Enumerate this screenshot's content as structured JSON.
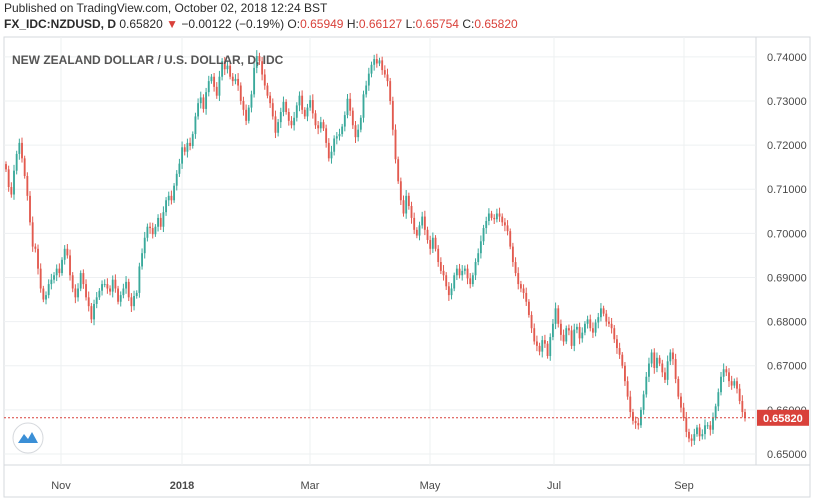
{
  "header": {
    "published": "Published on TradingView.com, October 02, 2018 12:24 BST",
    "symbol": "FX_IDC:NZDUSD, D",
    "last": "0.65820",
    "arrow": "▼",
    "change": "−0.00122 (−0.19%)",
    "o_label": "O:",
    "o_value": "0.65949",
    "h_label": "H:",
    "h_value": "0.66127",
    "l_label": "L:",
    "l_value": "0.65754",
    "c_label": "C:",
    "c_value": "0.65820"
  },
  "colors": {
    "up": "#3aa99b",
    "down": "#e25a4f",
    "price_line": "#d9413a",
    "grid": "#eef0f2",
    "axis_text": "#4a4a4a"
  },
  "icons": {
    "logo": "tradingview-cloud-icon"
  },
  "chart_data": {
    "type": "candlestick",
    "title": "NEW ZEALAND DOLLAR / U.S. DOLLAR, D, IDC",
    "ylim": [
      0.6475,
      0.7445
    ],
    "y_ticks": [
      "0.74000",
      "0.73000",
      "0.72000",
      "0.71000",
      "0.70000",
      "0.69000",
      "0.68000",
      "0.67000",
      "0.66000",
      "0.65000"
    ],
    "x_ticks": [
      "Nov",
      "2018",
      "Mar",
      "May",
      "Jul",
      "Sep"
    ],
    "last_price_label": "0.65820",
    "last_price": 0.6582,
    "closes": [
      0.7145,
      0.7105,
      0.7088,
      0.7142,
      0.718,
      0.7205,
      0.717,
      0.713,
      0.7085,
      0.7025,
      0.697,
      0.6965,
      0.692,
      0.6875,
      0.685,
      0.686,
      0.6885,
      0.6895,
      0.6905,
      0.692,
      0.691,
      0.694,
      0.6965,
      0.695,
      0.6905,
      0.6875,
      0.6855,
      0.6875,
      0.691,
      0.6885,
      0.6855,
      0.6835,
      0.6805,
      0.684,
      0.6855,
      0.687,
      0.6885,
      0.6885,
      0.6875,
      0.6868,
      0.6895,
      0.6875,
      0.6845,
      0.686,
      0.6875,
      0.689,
      0.6855,
      0.6835,
      0.6858,
      0.6865,
      0.6925,
      0.6955,
      0.699,
      0.7015,
      0.7012,
      0.6998,
      0.7015,
      0.7035,
      0.7015,
      0.7048,
      0.7075,
      0.7085,
      0.7075,
      0.7108,
      0.7135,
      0.7158,
      0.7195,
      0.7185,
      0.7205,
      0.7198,
      0.7225,
      0.7265,
      0.7295,
      0.7308,
      0.7282,
      0.732,
      0.7345,
      0.7355,
      0.7332,
      0.7312,
      0.7355,
      0.739,
      0.7372,
      0.738,
      0.7355,
      0.7345,
      0.735,
      0.7335,
      0.73,
      0.728,
      0.7255,
      0.7285,
      0.7315,
      0.7375,
      0.7402,
      0.739,
      0.736,
      0.7335,
      0.7312,
      0.7295,
      0.7265,
      0.7228,
      0.7252,
      0.7275,
      0.7298,
      0.7275,
      0.7255,
      0.7245,
      0.7262,
      0.729,
      0.7312,
      0.728,
      0.7265,
      0.7285,
      0.7302,
      0.7272,
      0.7245,
      0.7238,
      0.7252,
      0.7238,
      0.7205,
      0.717,
      0.7185,
      0.7215,
      0.722,
      0.7225,
      0.7242,
      0.7268,
      0.7305,
      0.7278,
      0.7245,
      0.7218,
      0.7235,
      0.7262,
      0.7315,
      0.7335,
      0.7362,
      0.7382,
      0.7395,
      0.7385,
      0.7392,
      0.737,
      0.736,
      0.7345,
      0.73,
      0.7235,
      0.7168,
      0.7118,
      0.7075,
      0.7045,
      0.7085,
      0.7062,
      0.7035,
      0.7008,
      0.6995,
      0.7018,
      0.7038,
      0.7008,
      0.6985,
      0.6965,
      0.699,
      0.6965,
      0.6935,
      0.6915,
      0.6905,
      0.688,
      0.686,
      0.6875,
      0.6905,
      0.692,
      0.6905,
      0.6915,
      0.692,
      0.6898,
      0.6885,
      0.6905,
      0.6935,
      0.6955,
      0.6982,
      0.7012,
      0.7028,
      0.7045,
      0.7035,
      0.7032,
      0.7045,
      0.7038,
      0.7025,
      0.7018,
      0.7005,
      0.697,
      0.6935,
      0.691,
      0.6885,
      0.6875,
      0.6865,
      0.6845,
      0.6815,
      0.6785,
      0.6755,
      0.6745,
      0.6732,
      0.6758,
      0.675,
      0.6722,
      0.6765,
      0.6795,
      0.683,
      0.6795,
      0.677,
      0.6755,
      0.6785,
      0.678,
      0.6745,
      0.6782,
      0.6788,
      0.6762,
      0.6775,
      0.6795,
      0.6805,
      0.6785,
      0.6775,
      0.6798,
      0.681,
      0.683,
      0.6818,
      0.68,
      0.6795,
      0.6785,
      0.676,
      0.674,
      0.6725,
      0.67,
      0.6665,
      0.663,
      0.6595,
      0.6575,
      0.657,
      0.6565,
      0.66,
      0.6635,
      0.6675,
      0.6705,
      0.673,
      0.6695,
      0.6718,
      0.6705,
      0.6685,
      0.6668,
      0.671,
      0.673,
      0.6715,
      0.667,
      0.663,
      0.6605,
      0.6582,
      0.655,
      0.6535,
      0.653,
      0.6545,
      0.656,
      0.654,
      0.6545,
      0.6565,
      0.6565,
      0.6555,
      0.6582,
      0.6608,
      0.664,
      0.6675,
      0.6692,
      0.6685,
      0.6665,
      0.6655,
      0.6665,
      0.6648,
      0.662,
      0.6595,
      0.6582
    ]
  }
}
